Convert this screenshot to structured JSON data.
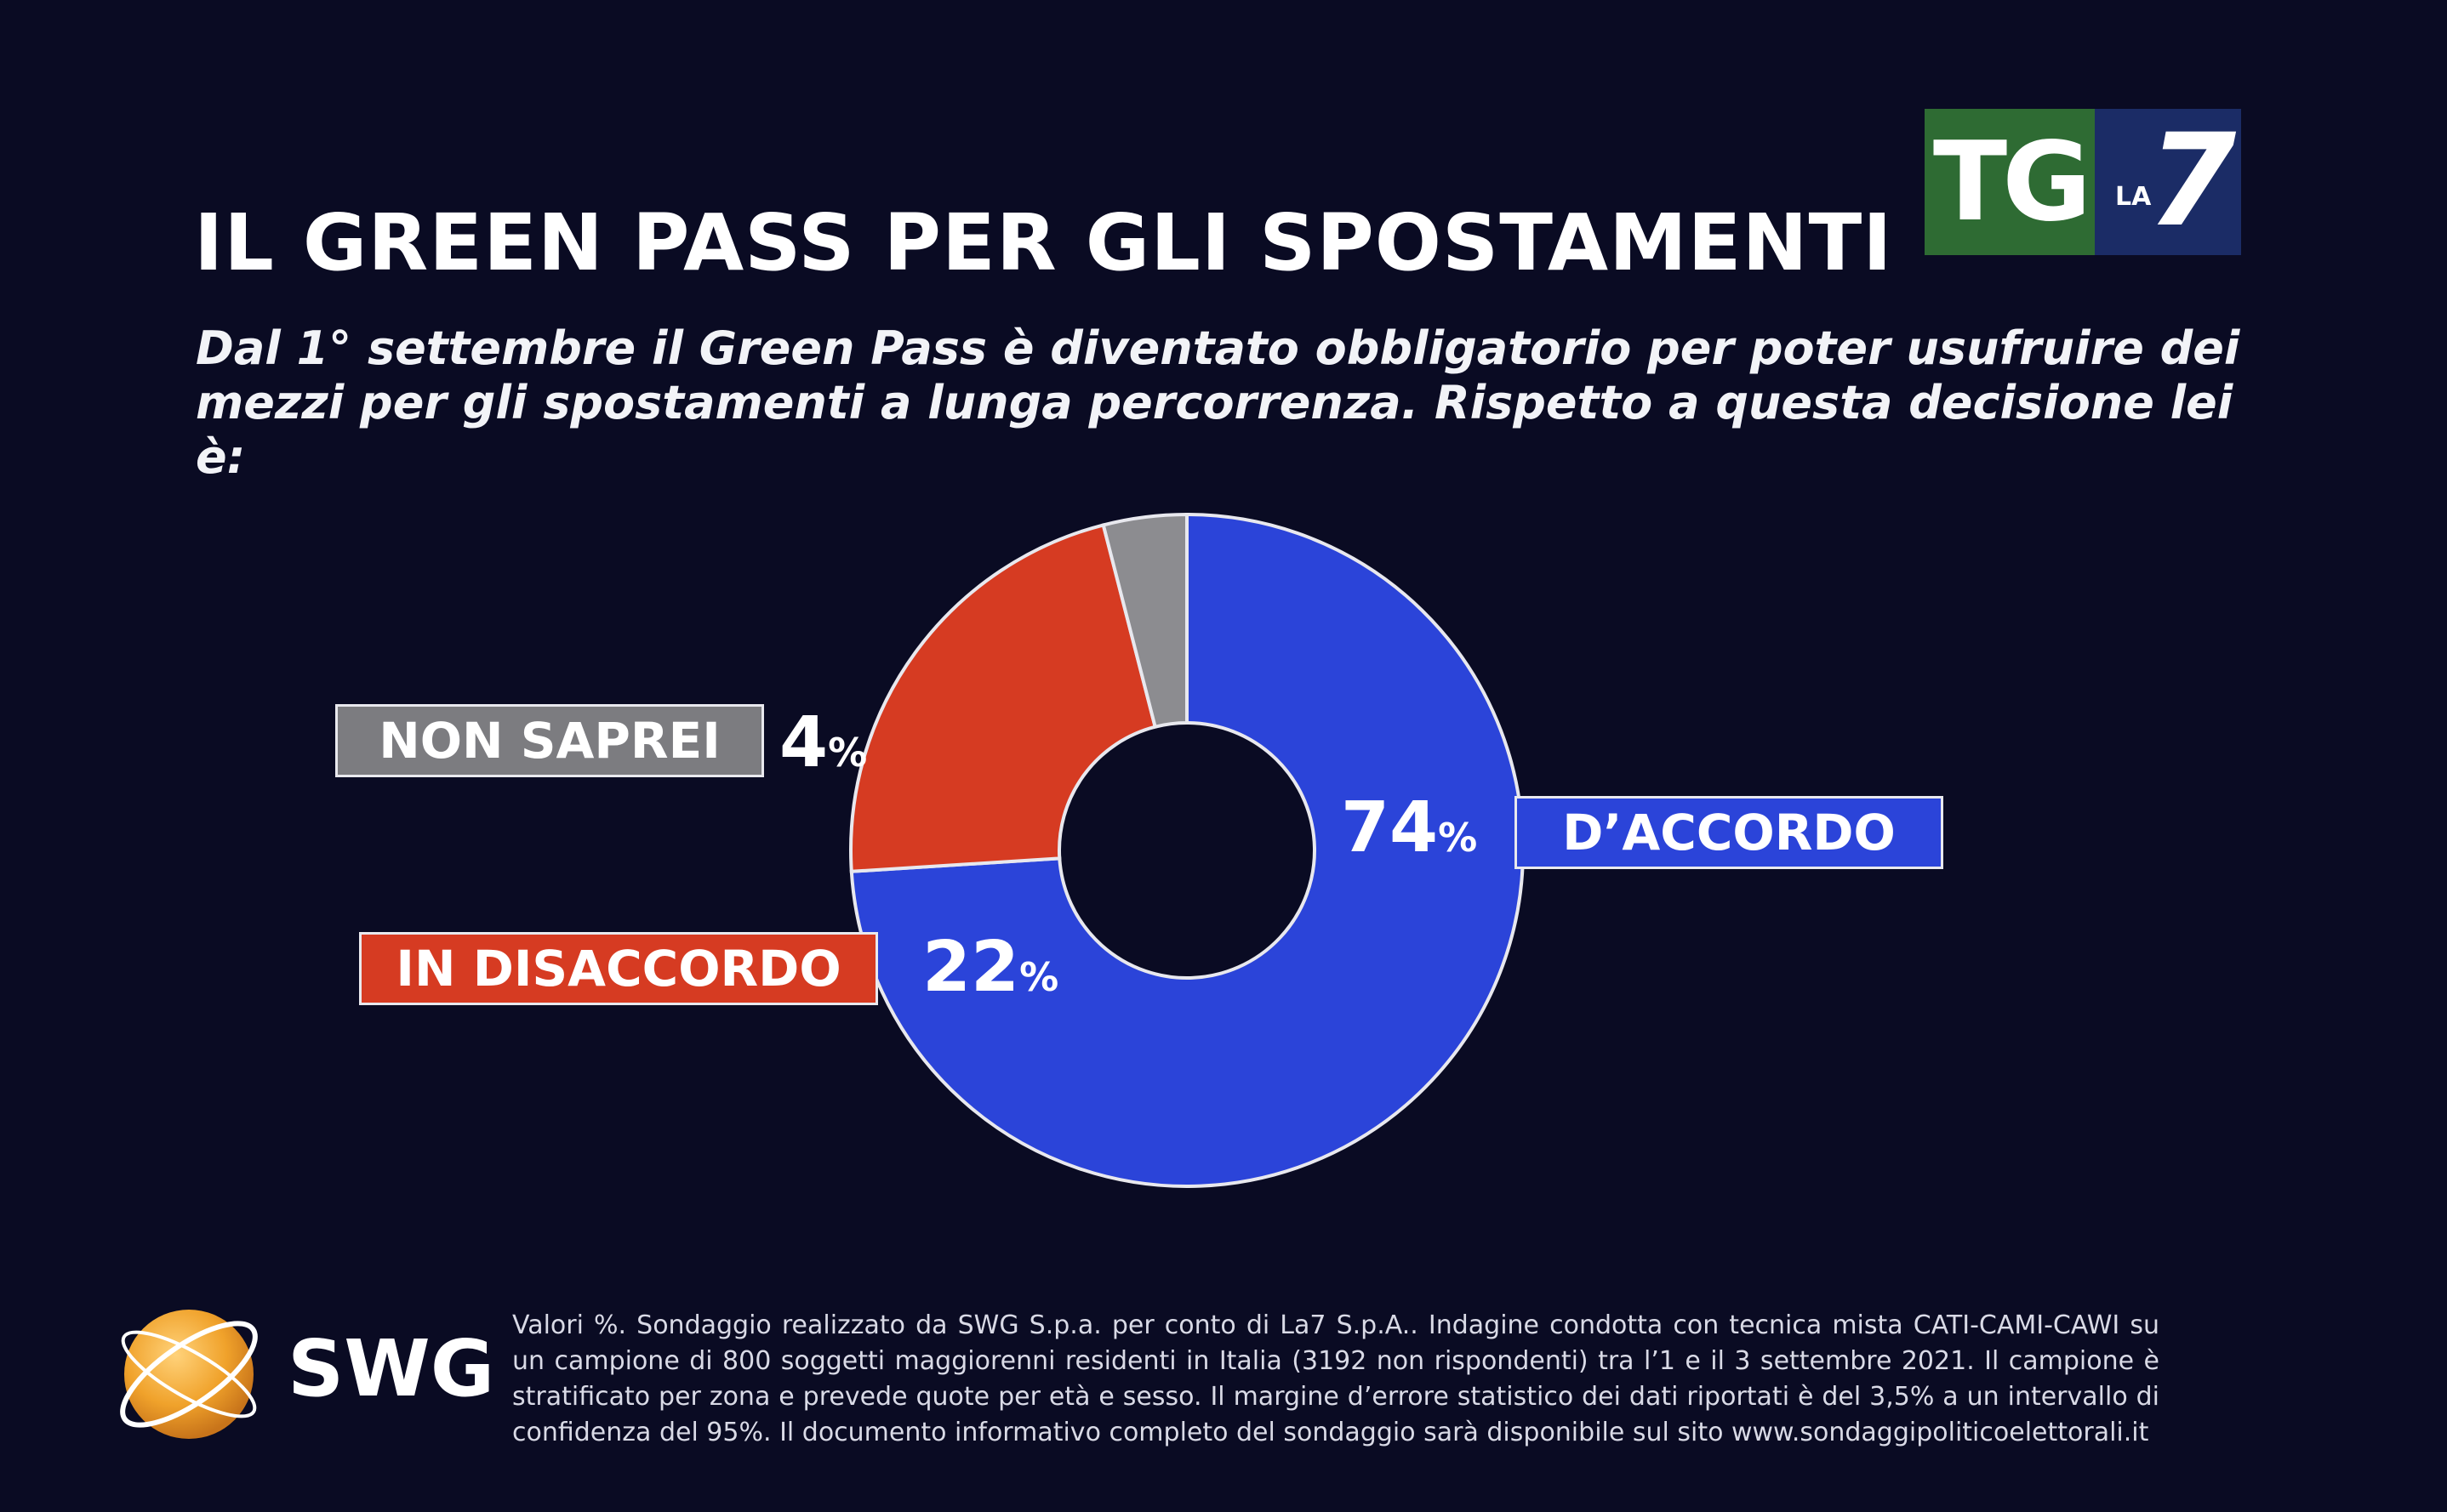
{
  "header": {
    "title": "IL GREEN PASS PER GLI SPOSTAMENTI",
    "subtitle": "Dal 1° settembre il Green Pass è diventato obbligatorio per poter usufruire dei mezzi per gli spostamenti a lunga percorrenza. Rispetto a questa decisione lei è:"
  },
  "logo": {
    "tg": "TG",
    "la": "LA",
    "seven": "7"
  },
  "chart_data": {
    "type": "pie",
    "title": "IL GREEN PASS PER GLI SPOSTAMENTI",
    "unit": "%",
    "start_angle_deg": -90,
    "slices": [
      {
        "label": "D’ACCORDO",
        "value": 74,
        "color": "#2b44d9"
      },
      {
        "label": "IN DISACCORDO",
        "value": 22,
        "color": "#d63b22"
      },
      {
        "label": "NON SAPREI",
        "value": 4,
        "color": "#8c8c90"
      }
    ]
  },
  "footer": {
    "brand": "SWG",
    "note": "Valori %. Sondaggio realizzato da SWG S.p.a. per conto di La7 S.p.A.. Indagine condotta con tecnica mista CATI-CAMI-CAWI su un campione di 800 soggetti maggiorenni residenti in Italia (3192 non rispondenti) tra l’1 e il 3 settembre 2021. Il campione è stratificato per zona e prevede quote per età e sesso. Il margine d’errore statistico dei dati riportati è del 3,5% a un intervallo di confidenza del 95%. Il documento informativo completo del sondaggio sarà disponibile sul sito www.sondaggipoliticoelettorali.it"
  }
}
